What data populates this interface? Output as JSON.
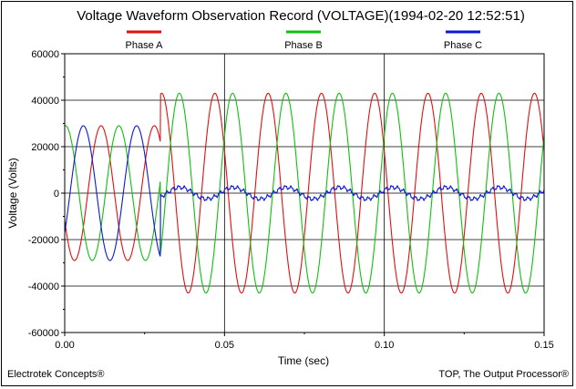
{
  "chart_data": {
    "type": "line",
    "title": "Voltage Waveform Observation Record (VOLTAGE)(1994-02-20 12:52:51)",
    "xlabel": "Time (sec)",
    "ylabel": "Voltage (Volts)",
    "xlim": [
      0,
      0.15
    ],
    "ylim": [
      -60000,
      60000
    ],
    "x_ticks": [
      0,
      0.05,
      0.1,
      0.15
    ],
    "x_tick_labels": [
      "0.00",
      "0.05",
      "0.10",
      "0.15"
    ],
    "y_ticks": [
      -60000,
      -40000,
      -20000,
      0,
      20000,
      40000,
      60000
    ],
    "y_tick_labels": [
      "-60000",
      "-40000",
      "-20000",
      "0",
      "20000",
      "40000",
      "60000"
    ],
    "grid": true,
    "legend_position": "top",
    "frequency_hz": 60,
    "event_time_sec": 0.03,
    "series": [
      {
        "name": "Phase A",
        "color": "#e01010",
        "pre_event": {
          "amplitude": 29000,
          "phase_deg": 204
        },
        "post_event": {
          "amplitude": 43000,
          "phase_deg": 155
        }
      },
      {
        "name": "Phase B",
        "color": "#10c010",
        "pre_event": {
          "amplitude": 29000,
          "phase_deg": 84
        },
        "post_event": {
          "amplitude": 43000,
          "phase_deg": 35
        }
      },
      {
        "name": "Phase C",
        "color": "#0a1ad0",
        "pre_event": {
          "amplitude": 29000,
          "phase_deg": -36
        },
        "post_event": {
          "amplitude": 2500,
          "phase_deg": 30
        }
      }
    ]
  },
  "footer": {
    "left": "Electrotek Concepts®",
    "right": "TOP, The Output Processor®"
  }
}
